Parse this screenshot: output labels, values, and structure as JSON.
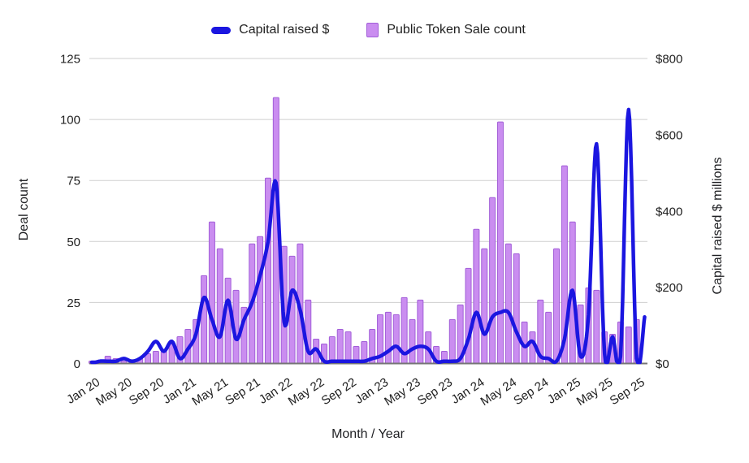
{
  "legend": [
    {
      "label": "Capital raised $",
      "type": "line"
    },
    {
      "label": "Public Token Sale count",
      "type": "bar"
    }
  ],
  "colors": {
    "line": "#1b16e0",
    "bar_fill": "#ca8df0",
    "bar_stroke": "#a25fd8",
    "gridline": "#cfcfcf",
    "baseline": "#757575",
    "text": "#212121"
  },
  "axes": {
    "left": {
      "title": "Deal count",
      "ticks": [
        0,
        25,
        50,
        75,
        100,
        125
      ],
      "max": 125
    },
    "right": {
      "title": "Capital raised $ millions",
      "ticks": [
        "$0",
        "$200",
        "$400",
        "$600",
        "$800"
      ],
      "tick_values": [
        0,
        200,
        400,
        600,
        800
      ],
      "max": 800
    },
    "x": {
      "title": "Month / Year",
      "label_every_n_months": 4
    }
  },
  "chart_data": {
    "type": "bar",
    "subtype": "combo bar + smooth line, dual axis",
    "x": [
      "Jan 20",
      "Feb 20",
      "Mar 20",
      "Apr 20",
      "May 20",
      "Jun 20",
      "Jul 20",
      "Aug 20",
      "Sep 20",
      "Oct 20",
      "Nov 20",
      "Dec 20",
      "Jan 21",
      "Feb 21",
      "Mar 21",
      "Apr 21",
      "May 21",
      "Jun 21",
      "Jul 21",
      "Aug 21",
      "Sep 21",
      "Oct 21",
      "Nov 21",
      "Dec 21",
      "Jan 22",
      "Feb 22",
      "Mar 22",
      "Apr 22",
      "May 22",
      "Jun 22",
      "Jul 22",
      "Aug 22",
      "Sep 22",
      "Oct 22",
      "Nov 22",
      "Dec 22",
      "Jan 23",
      "Feb 23",
      "Mar 23",
      "Apr 23",
      "May 23",
      "Jun 23",
      "Jul 23",
      "Aug 23",
      "Sep 23",
      "Oct 23",
      "Nov 23",
      "Dec 23",
      "Jan 24",
      "Feb 24",
      "Mar 24",
      "Apr 24",
      "May 24",
      "Jun 24",
      "Jul 24",
      "Aug 24",
      "Sep 24",
      "Oct 24",
      "Nov 24",
      "Dec 24",
      "Jan 25",
      "Feb 25",
      "Mar 25",
      "Apr 25",
      "May 25",
      "Jun 25",
      "Jul 25",
      "Aug 25",
      "Sep 25",
      "Oct 25"
    ],
    "series": [
      {
        "name": "Public Token Sale count",
        "type": "bar",
        "axis": "left",
        "unit": "deals",
        "values": [
          1,
          1,
          3,
          2,
          1,
          1,
          2,
          4,
          5,
          5,
          8,
          11,
          14,
          18,
          36,
          58,
          47,
          35,
          30,
          23,
          49,
          52,
          76,
          109,
          48,
          44,
          49,
          26,
          10,
          8,
          11,
          14,
          13,
          7,
          9,
          14,
          20,
          21,
          20,
          27,
          18,
          26,
          13,
          7,
          5,
          18,
          24,
          39,
          55,
          47,
          68,
          99,
          49,
          45,
          17,
          13,
          26,
          21,
          47,
          81,
          58,
          24,
          31,
          30,
          13,
          12,
          17,
          15,
          18,
          0
        ]
      },
      {
        "name": "Capital raised $",
        "type": "line",
        "axis": "right",
        "unit": "$ millions",
        "values": [
          0,
          6,
          6,
          6,
          13,
          6,
          13,
          32,
          58,
          32,
          58,
          13,
          38,
          77,
          173,
          115,
          70,
          166,
          64,
          115,
          160,
          230,
          320,
          474,
          109,
          192,
          141,
          32,
          38,
          6,
          6,
          6,
          6,
          6,
          6,
          13,
          19,
          32,
          45,
          26,
          38,
          45,
          38,
          6,
          6,
          6,
          13,
          64,
          134,
          77,
          122,
          134,
          134,
          83,
          45,
          58,
          19,
          13,
          6,
          64,
          192,
          19,
          128,
          576,
          26,
          70,
          19,
          666,
          13,
          122
        ]
      }
    ],
    "title": "",
    "xlabel": "Month / Year",
    "ylabel_left": "Deal count",
    "ylabel_right": "Capital raised $ millions",
    "ylim_left": [
      0,
      125
    ],
    "ylim_right": [
      0,
      800
    ],
    "grid": true,
    "legend_position": "top"
  }
}
